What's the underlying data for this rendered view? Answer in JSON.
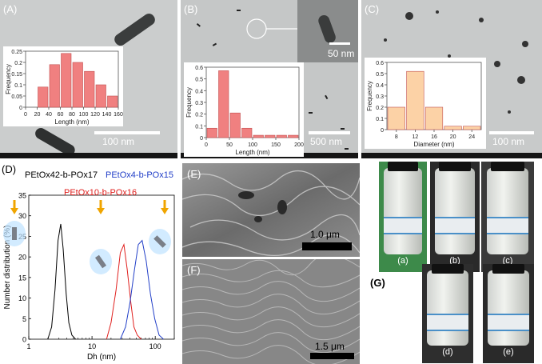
{
  "panels": {
    "A": {
      "label": "(A)",
      "scale_bar": "100 nm",
      "chart_data": {
        "type": "bar",
        "categories": [
          "20",
          "40",
          "60",
          "80",
          "100",
          "120",
          "140",
          "160"
        ],
        "values": [
          0.0,
          0.09,
          0.19,
          0.24,
          0.2,
          0.16,
          0.1,
          0.05
        ],
        "xlabel": "Length (nm)",
        "ylabel": "Frequency",
        "x_ticks": [
          "0",
          "20",
          "40",
          "60",
          "80",
          "100",
          "120",
          "140",
          "160"
        ],
        "color": "#f08080"
      }
    },
    "B": {
      "label": "(B)",
      "scale_bar": "500 nm",
      "inset_scale_bar": "50 nm",
      "chart_data": {
        "type": "bar",
        "categories": [
          "25",
          "50",
          "75",
          "100",
          "125",
          "150",
          "175",
          "200"
        ],
        "values": [
          0.08,
          0.57,
          0.21,
          0.08,
          0.02,
          0.02,
          0.02,
          0.02
        ],
        "xlabel": "Length (nm)",
        "ylabel": "Frequency",
        "x_ticks": [
          "0",
          "50",
          "100",
          "150",
          "200"
        ],
        "color": "#f08080"
      }
    },
    "C": {
      "label": "(C)",
      "scale_bar": "100 nm",
      "chart_data": {
        "type": "bar",
        "categories": [
          "8",
          "12",
          "16",
          "20",
          "24"
        ],
        "values": [
          0.2,
          0.52,
          0.2,
          0.03,
          0.03
        ],
        "xlabel": "Diameter (nm)",
        "ylabel": "Frequency",
        "x_ticks": [
          "8",
          "12",
          "16",
          "20",
          "24"
        ],
        "color": "#fcd2a6"
      }
    },
    "D": {
      "label": "(D)",
      "legend": [
        {
          "text": "PEtOx42-b-POx17",
          "color": "#000000"
        },
        {
          "text": "PEtOx10-b-POx16",
          "color": "#e0201e"
        },
        {
          "text": "PEtOx4-b-POx15",
          "color": "#2340c8"
        }
      ],
      "chart_data": {
        "type": "line",
        "xlabel": "Dh (nm)",
        "ylabel": "Number distribution (%)",
        "x_scale": "log",
        "xlim": [
          1,
          200
        ],
        "ylim": [
          0,
          35
        ],
        "x_ticks": [
          "1",
          "10",
          "100"
        ],
        "y_ticks": [
          "0",
          "5",
          "10",
          "15",
          "20",
          "25",
          "30",
          "35"
        ],
        "series": [
          {
            "name": "PEtOx42-b-POx17",
            "color": "#000000",
            "x": [
              2.0,
              2.3,
              2.6,
              2.9,
              3.2,
              3.5,
              3.9,
              4.3,
              4.8,
              5.5
            ],
            "y": [
              0,
              3,
              12,
              24,
              28,
              22,
              11,
              4,
              1,
              0
            ]
          },
          {
            "name": "PEtOx10-b-POx16",
            "color": "#e0201e",
            "x": [
              17,
              20,
              24,
              28,
              32,
              36,
              41,
              46,
              52,
              60
            ],
            "y": [
              0,
              4,
              12,
              21,
              23,
              17,
              9,
              3,
              1,
              0
            ]
          },
          {
            "name": "PEtOx4-b-POx15",
            "color": "#2340c8",
            "x": [
              28,
              34,
              40,
              47,
              54,
              62,
              72,
              84,
              98,
              115,
              135
            ],
            "y": [
              0,
              3,
              9,
              17,
              23,
              24,
              19,
              11,
              5,
              1,
              0
            ]
          }
        ]
      }
    },
    "E": {
      "label": "(E)",
      "scale_bar": "1.0 μm"
    },
    "F": {
      "label": "(F)",
      "scale_bar": "1.5 μm"
    },
    "G": {
      "label": "(G)",
      "vials": [
        {
          "label": "(a)"
        },
        {
          "label": "(b)"
        },
        {
          "label": "(c)"
        },
        {
          "label": "(d)"
        },
        {
          "label": "(e)"
        }
      ]
    }
  }
}
